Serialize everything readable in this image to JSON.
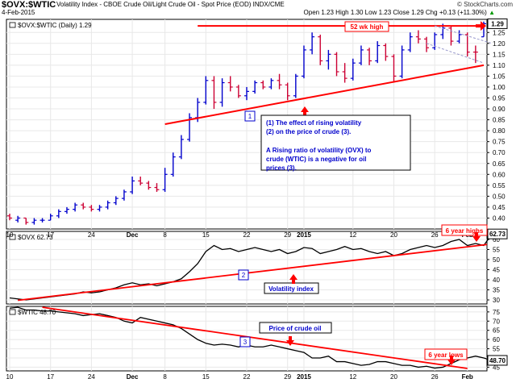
{
  "header": {
    "symbol": "$OVX:$WTIC",
    "description": "Volatility Index - CBOE Crude Oil/Light Crude Oil - Spot Price (EOD)  INDX/CME",
    "date": "4-Feb-2015",
    "credit": "© StockCharts.com",
    "open_label": "Open",
    "open": "1.23",
    "high_label": "High",
    "high": "1.30",
    "low_label": "Low",
    "low": "1.23",
    "close_label": "Close",
    "close": "1.29",
    "chg_label": "Chg",
    "chg": "+0.13 (+11.30%)",
    "up_arrow": "▲"
  },
  "colors": {
    "up_bar": "#0000cc",
    "down_bar": "#cc0033",
    "trendline": "#ff0000",
    "annotation_text": "#0000cc",
    "grid": "#e8e8e8",
    "last_price_box": "#000000"
  },
  "annotations": {
    "wk52": "52 wk high",
    "six_year_highs": "6 year highs",
    "six_year_lows": "6 year lows",
    "vol_index": "Volatility index",
    "crude_price": "Price of crude oil",
    "n1": "1",
    "n2": "2",
    "n3": "3",
    "note_p1": "(1) The effect of rising volatility (2) on the price of crude (3).",
    "note_p2": "A Rising ratio of volatility (OVX) to crude (WTIC) is a negative for oil prices (3)."
  },
  "chart_data": [
    {
      "type": "ohlc",
      "legend": "$OVX:$WTIC (Daily) 1.29",
      "x_ticks": [
        "10",
        "17",
        "24",
        "Dec",
        "8",
        "15",
        "22",
        "29",
        "2015",
        "12",
        "20",
        "26",
        "Feb"
      ],
      "y_ticks": [
        0.4,
        0.45,
        0.5,
        0.55,
        0.6,
        0.65,
        0.7,
        0.75,
        0.8,
        0.85,
        0.9,
        0.95,
        1.0,
        1.05,
        1.1,
        1.15,
        1.2,
        1.25
      ],
      "ylim": [
        0.35,
        1.31
      ],
      "last_value": "1.29",
      "bars": [
        {
          "d": "Nov 10",
          "o": 0.41,
          "h": 0.42,
          "l": 0.39,
          "c": 0.4,
          "up": false
        },
        {
          "d": "Nov 11",
          "o": 0.39,
          "h": 0.41,
          "l": 0.38,
          "c": 0.4,
          "up": true
        },
        {
          "d": "Nov 12",
          "o": 0.4,
          "h": 0.4,
          "l": 0.37,
          "c": 0.38,
          "up": false
        },
        {
          "d": "Nov 13",
          "o": 0.38,
          "h": 0.4,
          "l": 0.37,
          "c": 0.39,
          "up": true
        },
        {
          "d": "Nov 14",
          "o": 0.39,
          "h": 0.4,
          "l": 0.38,
          "c": 0.39,
          "up": true
        },
        {
          "d": "Nov 17",
          "o": 0.39,
          "h": 0.42,
          "l": 0.39,
          "c": 0.41,
          "up": true
        },
        {
          "d": "Nov 18",
          "o": 0.41,
          "h": 0.44,
          "l": 0.4,
          "c": 0.43,
          "up": true
        },
        {
          "d": "Nov 19",
          "o": 0.43,
          "h": 0.45,
          "l": 0.42,
          "c": 0.44,
          "up": true
        },
        {
          "d": "Nov 20",
          "o": 0.44,
          "h": 0.47,
          "l": 0.43,
          "c": 0.46,
          "up": true
        },
        {
          "d": "Nov 21",
          "o": 0.46,
          "h": 0.47,
          "l": 0.44,
          "c": 0.45,
          "up": false
        },
        {
          "d": "Nov 24",
          "o": 0.45,
          "h": 0.46,
          "l": 0.43,
          "c": 0.44,
          "up": false
        },
        {
          "d": "Nov 25",
          "o": 0.44,
          "h": 0.46,
          "l": 0.43,
          "c": 0.45,
          "up": true
        },
        {
          "d": "Nov 26",
          "o": 0.45,
          "h": 0.48,
          "l": 0.44,
          "c": 0.47,
          "up": true
        },
        {
          "d": "Nov 28",
          "o": 0.47,
          "h": 0.5,
          "l": 0.46,
          "c": 0.49,
          "up": true
        },
        {
          "d": "Dec 1",
          "o": 0.49,
          "h": 0.53,
          "l": 0.48,
          "c": 0.52,
          "up": true
        },
        {
          "d": "Dec 2",
          "o": 0.52,
          "h": 0.59,
          "l": 0.51,
          "c": 0.57,
          "up": true
        },
        {
          "d": "Dec 3",
          "o": 0.57,
          "h": 0.59,
          "l": 0.55,
          "c": 0.56,
          "up": false
        },
        {
          "d": "Dec 4",
          "o": 0.56,
          "h": 0.57,
          "l": 0.53,
          "c": 0.54,
          "up": false
        },
        {
          "d": "Dec 5",
          "o": 0.54,
          "h": 0.56,
          "l": 0.52,
          "c": 0.53,
          "up": false
        },
        {
          "d": "Dec 8",
          "o": 0.53,
          "h": 0.63,
          "l": 0.52,
          "c": 0.6,
          "up": true
        },
        {
          "d": "Dec 9",
          "o": 0.6,
          "h": 0.7,
          "l": 0.59,
          "c": 0.68,
          "up": true
        },
        {
          "d": "Dec 10",
          "o": 0.68,
          "h": 0.78,
          "l": 0.67,
          "c": 0.76,
          "up": true
        },
        {
          "d": "Dec 11",
          "o": 0.76,
          "h": 0.88,
          "l": 0.75,
          "c": 0.86,
          "up": true
        },
        {
          "d": "Dec 12",
          "o": 0.86,
          "h": 0.95,
          "l": 0.84,
          "c": 0.93,
          "up": true
        },
        {
          "d": "Dec 15",
          "o": 0.93,
          "h": 1.05,
          "l": 0.92,
          "c": 1.03,
          "up": true
        },
        {
          "d": "Dec 16",
          "o": 1.03,
          "h": 1.05,
          "l": 0.9,
          "c": 0.93,
          "up": false
        },
        {
          "d": "Dec 17",
          "o": 0.93,
          "h": 1.04,
          "l": 0.91,
          "c": 1.02,
          "up": true
        },
        {
          "d": "Dec 18",
          "o": 1.02,
          "h": 1.05,
          "l": 0.98,
          "c": 1.0,
          "up": false
        },
        {
          "d": "Dec 19",
          "o": 1.0,
          "h": 1.01,
          "l": 0.95,
          "c": 0.96,
          "up": false
        },
        {
          "d": "Dec 22",
          "o": 0.96,
          "h": 1.0,
          "l": 0.94,
          "c": 0.98,
          "up": true
        },
        {
          "d": "Dec 23",
          "o": 0.98,
          "h": 1.03,
          "l": 0.97,
          "c": 1.02,
          "up": true
        },
        {
          "d": "Dec 24",
          "o": 1.02,
          "h": 1.03,
          "l": 0.99,
          "c": 1.0,
          "up": false
        },
        {
          "d": "Dec 26",
          "o": 1.0,
          "h": 1.04,
          "l": 0.99,
          "c": 1.03,
          "up": true
        },
        {
          "d": "Dec 29",
          "o": 1.03,
          "h": 1.06,
          "l": 0.99,
          "c": 1.01,
          "up": false
        },
        {
          "d": "Dec 30",
          "o": 1.01,
          "h": 1.02,
          "l": 0.94,
          "c": 0.96,
          "up": false
        },
        {
          "d": "Dec 31",
          "o": 0.96,
          "h": 1.06,
          "l": 0.95,
          "c": 1.05,
          "up": true
        },
        {
          "d": "Jan 2",
          "o": 1.05,
          "h": 1.19,
          "l": 1.04,
          "c": 1.17,
          "up": true
        },
        {
          "d": "Jan 5",
          "o": 1.17,
          "h": 1.25,
          "l": 1.15,
          "c": 1.23,
          "up": true
        },
        {
          "d": "Jan 6",
          "o": 1.23,
          "h": 1.24,
          "l": 1.1,
          "c": 1.12,
          "up": false
        },
        {
          "d": "Jan 7",
          "o": 1.12,
          "h": 1.17,
          "l": 1.08,
          "c": 1.15,
          "up": true
        },
        {
          "d": "Jan 8",
          "o": 1.15,
          "h": 1.16,
          "l": 1.05,
          "c": 1.07,
          "up": false
        },
        {
          "d": "Jan 9",
          "o": 1.07,
          "h": 1.11,
          "l": 1.02,
          "c": 1.04,
          "up": false
        },
        {
          "d": "Jan 12",
          "o": 1.04,
          "h": 1.13,
          "l": 1.03,
          "c": 1.11,
          "up": true
        },
        {
          "d": "Jan 13",
          "o": 1.11,
          "h": 1.19,
          "l": 1.1,
          "c": 1.17,
          "up": true
        },
        {
          "d": "Jan 14",
          "o": 1.17,
          "h": 1.18,
          "l": 1.1,
          "c": 1.12,
          "up": false
        },
        {
          "d": "Jan 15",
          "o": 1.12,
          "h": 1.21,
          "l": 1.11,
          "c": 1.19,
          "up": true
        },
        {
          "d": "Jan 16",
          "o": 1.19,
          "h": 1.2,
          "l": 1.12,
          "c": 1.14,
          "up": false
        },
        {
          "d": "Jan 20",
          "o": 1.14,
          "h": 1.15,
          "l": 1.02,
          "c": 1.05,
          "up": false
        },
        {
          "d": "Jan 21",
          "o": 1.05,
          "h": 1.19,
          "l": 1.04,
          "c": 1.17,
          "up": true
        },
        {
          "d": "Jan 22",
          "o": 1.17,
          "h": 1.25,
          "l": 1.16,
          "c": 1.23,
          "up": true
        },
        {
          "d": "Jan 23",
          "o": 1.23,
          "h": 1.26,
          "l": 1.2,
          "c": 1.22,
          "up": false
        },
        {
          "d": "Jan 26",
          "o": 1.22,
          "h": 1.23,
          "l": 1.16,
          "c": 1.18,
          "up": false
        },
        {
          "d": "Jan 27",
          "o": 1.18,
          "h": 1.25,
          "l": 1.17,
          "c": 1.24,
          "up": true
        },
        {
          "d": "Jan 28",
          "o": 1.24,
          "h": 1.29,
          "l": 1.22,
          "c": 1.27,
          "up": true
        },
        {
          "d": "Jan 29",
          "o": 1.27,
          "h": 1.28,
          "l": 1.19,
          "c": 1.21,
          "up": false
        },
        {
          "d": "Jan 30",
          "o": 1.21,
          "h": 1.26,
          "l": 1.2,
          "c": 1.24,
          "up": true
        },
        {
          "d": "Feb 2",
          "o": 1.24,
          "h": 1.25,
          "l": 1.14,
          "c": 1.16,
          "up": false
        },
        {
          "d": "Feb 3",
          "o": 1.16,
          "h": 1.19,
          "l": 1.11,
          "c": 1.16,
          "up": false
        },
        {
          "d": "Feb 4",
          "o": 1.23,
          "h": 1.3,
          "l": 1.23,
          "c": 1.29,
          "up": true
        }
      ]
    },
    {
      "type": "line",
      "legend": "$OVX 62.73",
      "x_ticks": [
        "10",
        "17",
        "24",
        "Dec",
        "8",
        "15",
        "22",
        "29",
        "2015",
        "12",
        "20",
        "26",
        "Feb"
      ],
      "y_ticks": [
        30,
        35,
        40,
        45,
        50,
        55,
        60
      ],
      "ylim": [
        28,
        64
      ],
      "last_value": "62.73",
      "values": [
        31,
        30.5,
        30,
        30.5,
        31,
        31.5,
        32,
        32.5,
        33,
        34,
        33.5,
        34,
        35,
        36,
        37.5,
        38.5,
        37.5,
        38,
        37,
        38,
        39,
        40.5,
        44,
        48,
        54,
        57,
        55,
        55.5,
        54,
        55,
        56,
        55,
        54,
        55,
        53,
        54,
        56,
        55.5,
        53,
        54,
        55,
        56.5,
        55,
        55.5,
        54,
        53,
        54,
        52,
        53,
        55,
        56,
        57,
        56,
        57,
        59,
        60,
        57,
        58,
        57,
        62.73
      ]
    },
    {
      "type": "line",
      "legend": "$WTIC 48.70",
      "x_ticks": [
        "10",
        "17",
        "24",
        "Dec",
        "8",
        "15",
        "22",
        "29",
        "2015",
        "12",
        "20",
        "26",
        "Feb"
      ],
      "y_ticks": [
        45,
        50,
        55,
        60,
        65,
        70,
        75
      ],
      "ylim": [
        43,
        78
      ],
      "last_value": "48.70",
      "values": [
        77,
        77.5,
        76,
        76,
        75.5,
        75.5,
        75,
        74.5,
        74,
        73,
        73.5,
        74,
        73,
        72,
        70,
        69,
        72,
        71,
        70,
        69,
        68,
        66,
        63,
        60,
        58,
        57,
        57.5,
        57,
        56,
        57,
        56,
        56,
        57,
        56,
        55,
        54,
        53,
        50,
        50,
        51,
        48,
        48,
        47,
        46,
        46.5,
        48,
        48,
        47,
        46,
        46,
        45,
        45.5,
        44.5,
        45,
        47,
        49,
        50,
        51,
        50,
        48.7
      ]
    }
  ]
}
